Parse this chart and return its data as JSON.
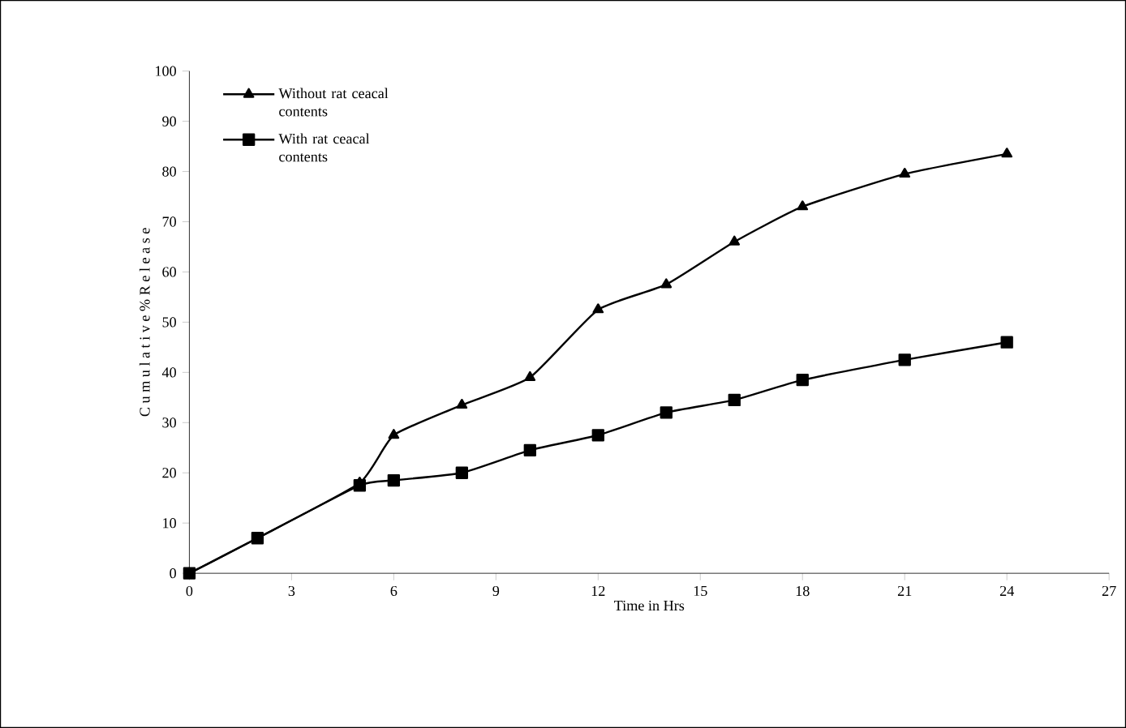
{
  "chart_data": {
    "type": "line",
    "xlabel": "Time in Hrs",
    "ylabel": "C u m u l a t i v e  % R e l e a s e",
    "xlim": [
      0,
      27
    ],
    "xticks": [
      0,
      3,
      6,
      9,
      12,
      15,
      18,
      21,
      24,
      27
    ],
    "ylim": [
      0,
      100
    ],
    "yticks": [
      0,
      10,
      20,
      30,
      40,
      50,
      60,
      70,
      80,
      90,
      100
    ],
    "grid": false,
    "legend": "top left",
    "series": [
      {
        "name": "Without rat ceacal contents",
        "color": "#000000",
        "marker": "triangle",
        "x": [
          0,
          2,
          5,
          6,
          8,
          10,
          12,
          14,
          16,
          18,
          21,
          24
        ],
        "values": [
          0,
          7,
          18,
          27.5,
          33.5,
          39,
          52.5,
          57.5,
          66,
          73,
          79.5,
          83.5
        ]
      },
      {
        "name": "With rat ceacal contents",
        "color": "#000000",
        "marker": "square",
        "x": [
          0,
          2,
          5,
          6,
          8,
          10,
          12,
          14,
          16,
          18,
          21,
          24
        ],
        "values": [
          0,
          7,
          17.5,
          18.5,
          20,
          24.5,
          27.5,
          32,
          34.5,
          38.5,
          42.5,
          46
        ]
      }
    ]
  }
}
